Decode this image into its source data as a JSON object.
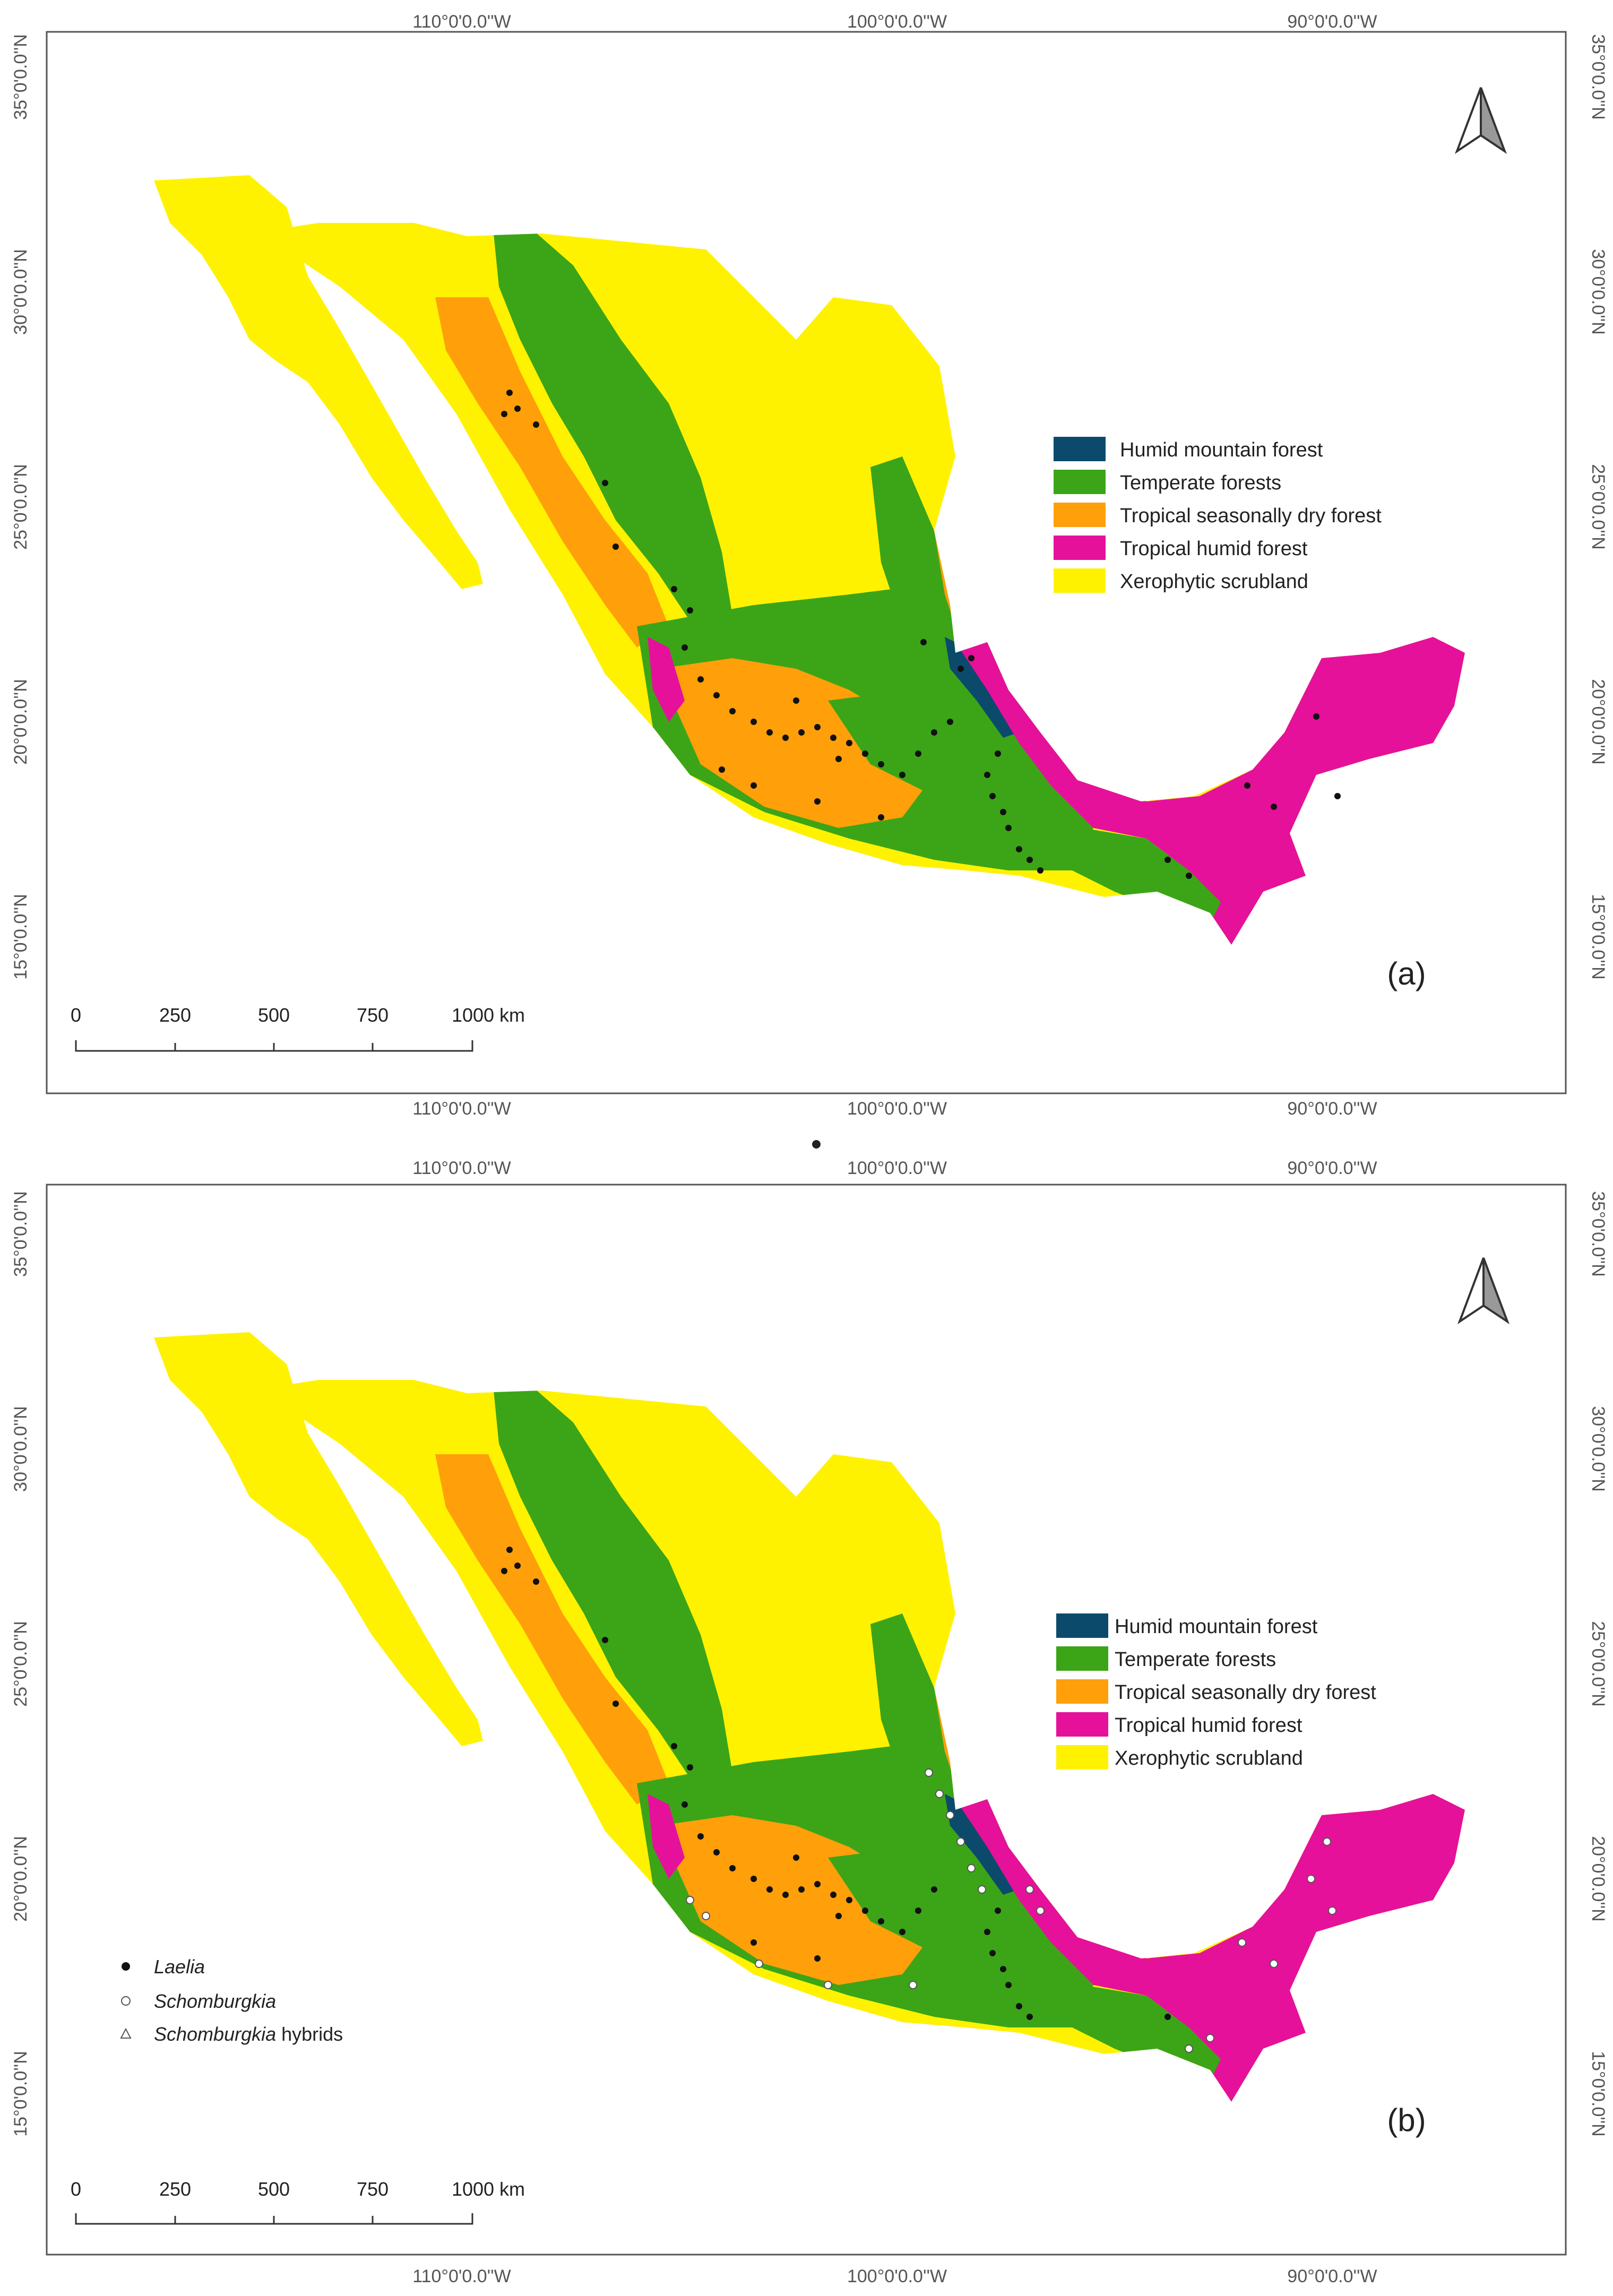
{
  "colors": {
    "humid_mountain": "#0b4a6b",
    "temperate": "#3ba517",
    "tropical_dry": "#ff9f0a",
    "tropical_humid": "#e5119a",
    "xerophytic": "#fff200",
    "laelia": "#111111",
    "schomburgkia": "#ffffff"
  },
  "axes": {
    "top_lon": [
      "110°0'0.0''W",
      "100°0'0.0''W",
      "90°0'0.0''W"
    ],
    "bottom_lon": [
      "110°0'0.0''W",
      "100°0'0.0''W",
      "90°0'0.0''W"
    ],
    "lat": [
      "35°0'0.0''N",
      "30°0'0.0''N",
      "25°0'0.0''N",
      "20°0'0.0''N",
      "15°0'0.0''N"
    ]
  },
  "legend": [
    {
      "label": "Humid mountain forest",
      "color": "#0b4a6b"
    },
    {
      "label": "Temperate forests",
      "color": "#3ba517"
    },
    {
      "label": "Tropical seasonally dry forest",
      "color": "#ff9f0a"
    },
    {
      "label": "Tropical humid forest",
      "color": "#e5119a"
    },
    {
      "label": "Xerophytic scrubland",
      "color": "#fff200"
    }
  ],
  "points_legend": [
    {
      "symbol": "filled-circle",
      "italic": "Laelia",
      "rest": ""
    },
    {
      "symbol": "open-circle",
      "italic": "Schomburgkia",
      "rest": ""
    },
    {
      "symbol": "open-triangle",
      "italic": "Schomburgkia",
      "rest": " hybrids"
    }
  ],
  "scale_bar": {
    "ticks": [
      "0",
      "250",
      "500",
      "750",
      "1000 km"
    ]
  },
  "panels": [
    {
      "id": "a",
      "label": "(a)"
    },
    {
      "id": "b",
      "label": "(b)"
    }
  ]
}
